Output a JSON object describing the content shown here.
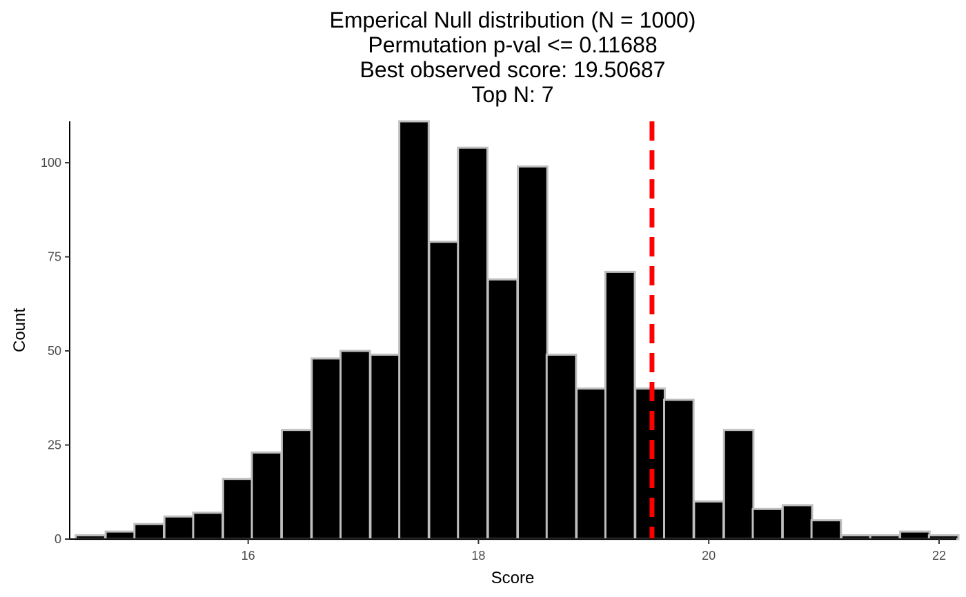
{
  "chart_data": {
    "type": "bar",
    "title": [
      "Emperical Null distribution (N = 1000)",
      "Permutation p-val <= 0.11688",
      "Best observed score: 19.50687",
      "Top N: 7"
    ],
    "xlabel": "Score",
    "ylabel": "Count",
    "xlim": [
      14.45,
      22.15
    ],
    "ylim": [
      0,
      111
    ],
    "xticks": [
      16,
      18,
      20,
      22
    ],
    "yticks": [
      0,
      25,
      50,
      75,
      100
    ],
    "grid": false,
    "bin_width": 0.2556,
    "bin_centers": [
      14.63,
      14.89,
      15.14,
      15.4,
      15.65,
      15.91,
      16.16,
      16.42,
      16.68,
      16.93,
      17.19,
      17.44,
      17.7,
      17.95,
      18.21,
      18.47,
      18.72,
      18.98,
      19.23,
      19.49,
      19.74,
      20.0,
      20.26,
      20.51,
      20.77,
      21.02,
      21.28,
      21.53,
      21.79,
      22.04
    ],
    "values": [
      1,
      2,
      4,
      6,
      7,
      16,
      23,
      29,
      48,
      50,
      49,
      111,
      79,
      104,
      69,
      99,
      49,
      40,
      71,
      40,
      37,
      10,
      29,
      8,
      9,
      5,
      1,
      1,
      2,
      1
    ],
    "bar_fill": "#000000",
    "bar_outline": "#bebebe",
    "reference_line": {
      "x": 19.50687,
      "color": "#ff0000",
      "style": "dashed"
    }
  }
}
